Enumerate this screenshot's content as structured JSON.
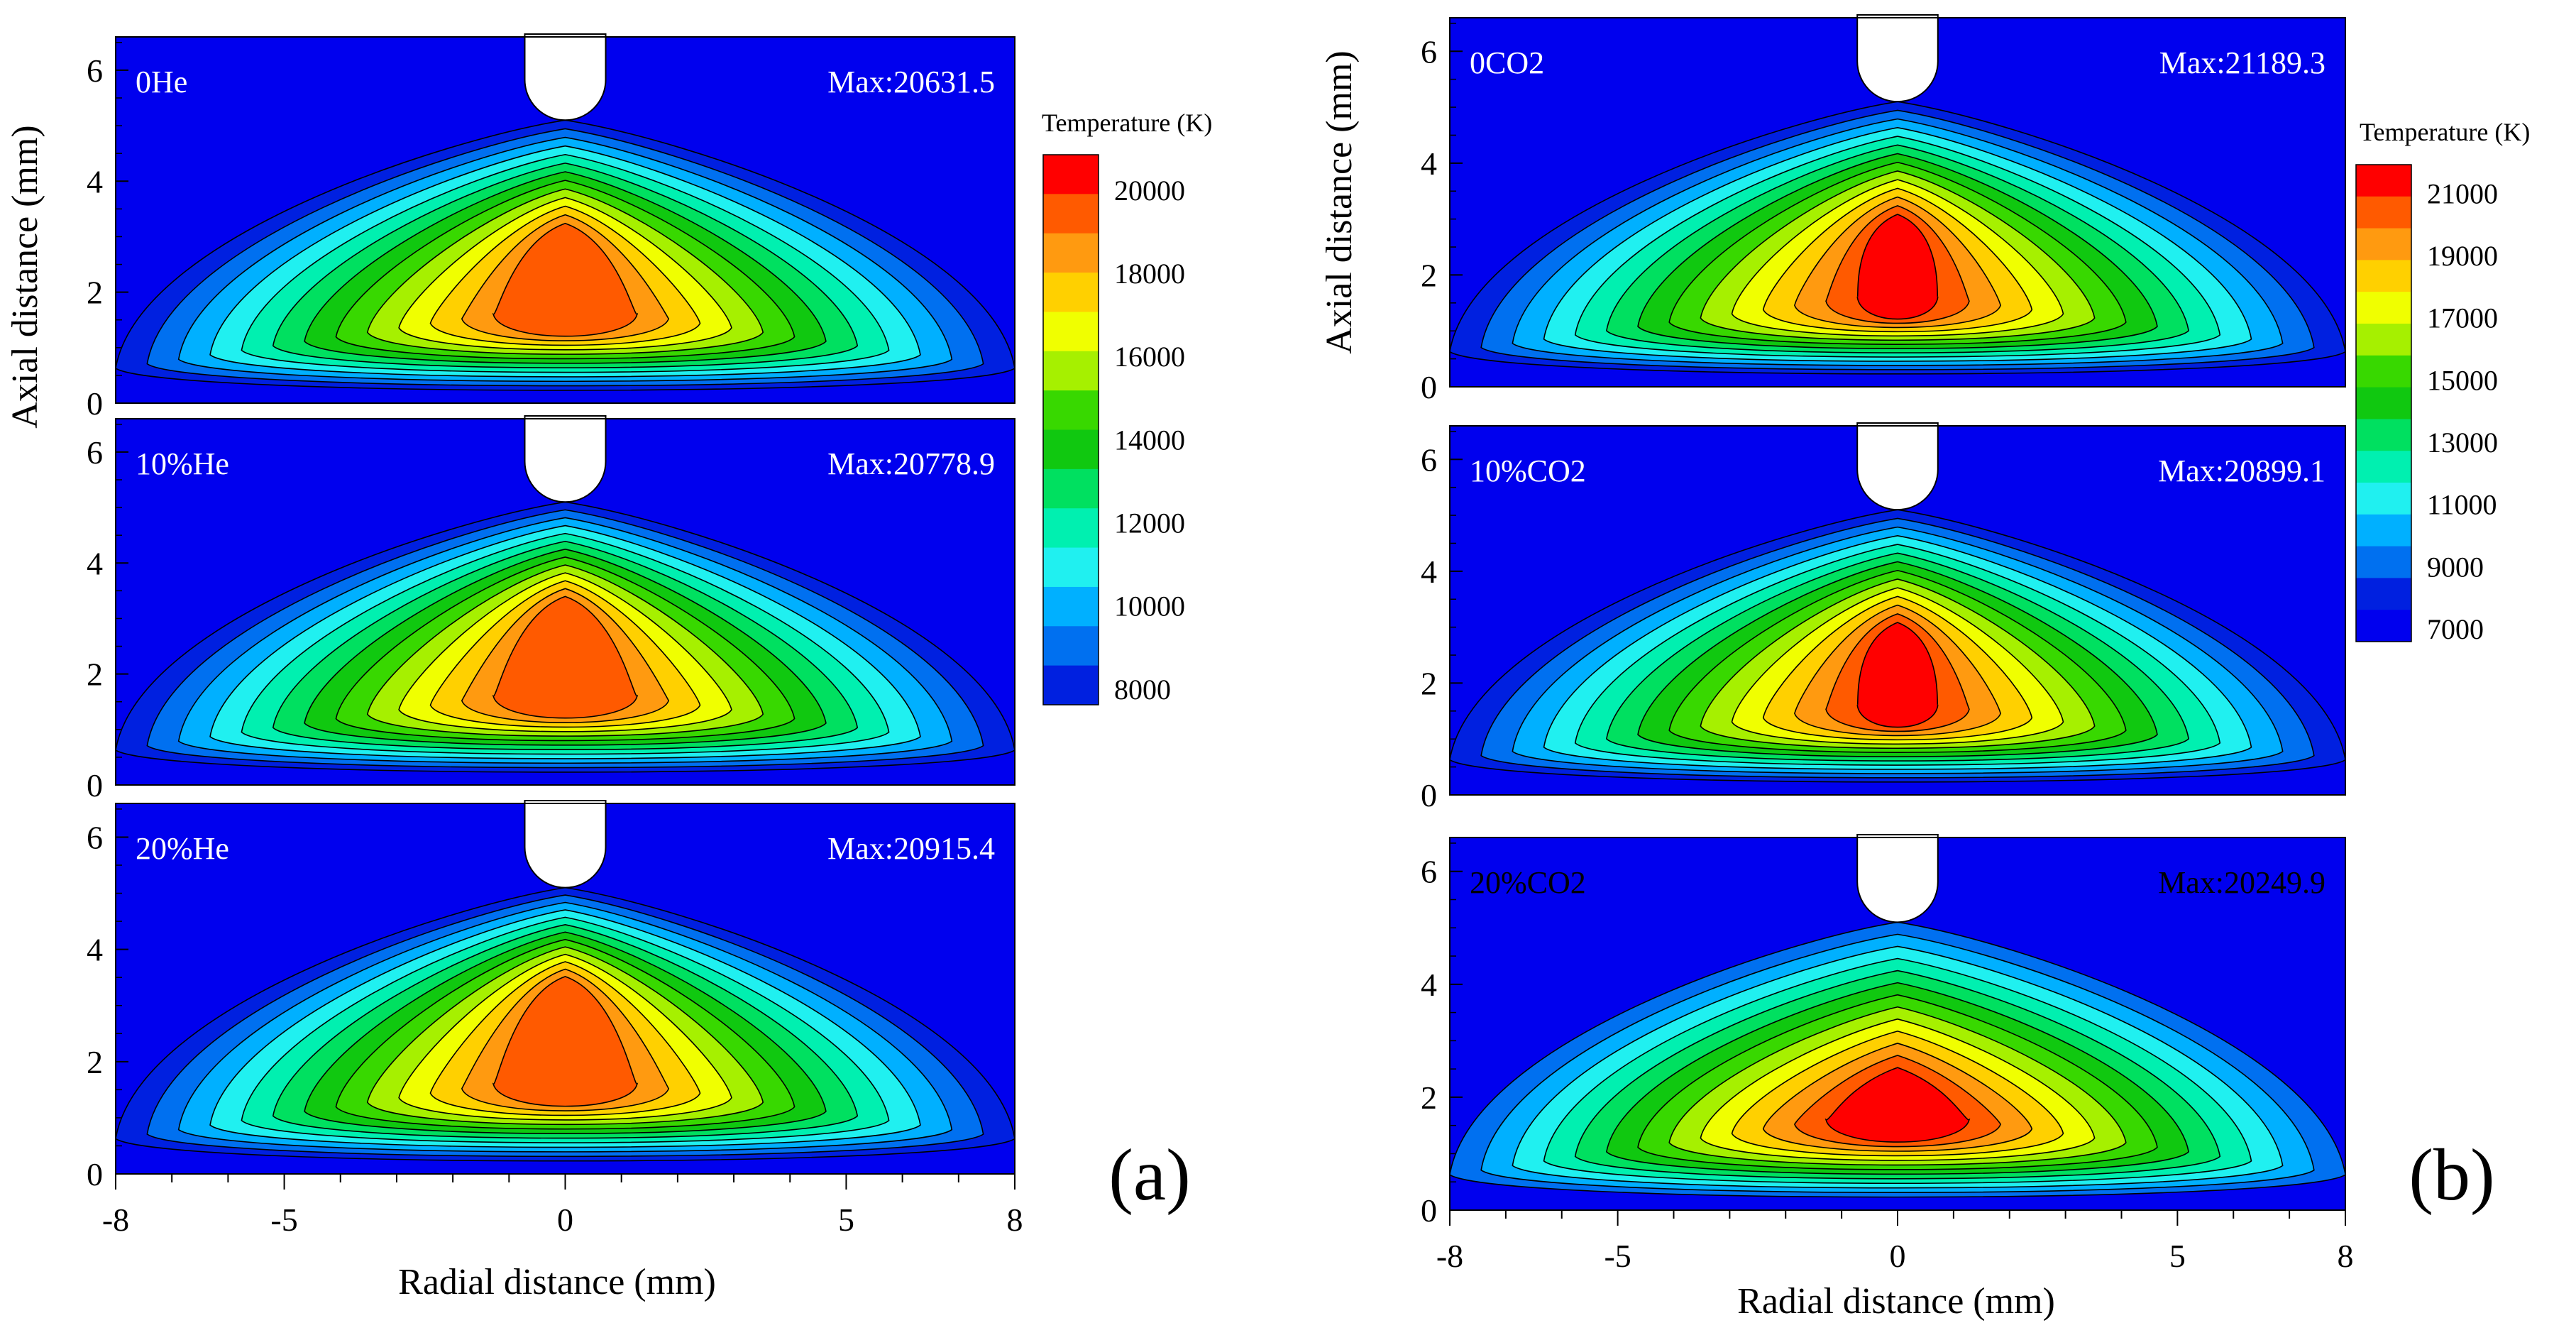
{
  "figure": {
    "panel_a_label": "(a)",
    "panel_b_label": "(b)"
  },
  "chart_data": [
    {
      "type": "heatmap",
      "subtype": "filled contour",
      "panel": "(a)",
      "title": "0He",
      "max_label": "Max:20631.5",
      "max_temperature_K": 20631.5,
      "ylabel": "Axial distance (mm)",
      "xlabel": "Radial distance (mm)",
      "xlim": [
        -8,
        8
      ],
      "ylim": [
        0,
        6.6
      ],
      "x_ticks": [
        -8,
        -5,
        0,
        5,
        8
      ],
      "y_ticks": [
        0,
        2,
        4,
        6
      ],
      "contour_levels_K": [
        8000,
        9000,
        10000,
        11000,
        12000,
        13000,
        14000,
        15000,
        16000,
        17000,
        18000,
        19000,
        20000
      ]
    },
    {
      "type": "heatmap",
      "subtype": "filled contour",
      "panel": "(a)",
      "title": "10%He",
      "max_label": "Max:20778.9",
      "max_temperature_K": 20778.9,
      "xlim": [
        -8,
        8
      ],
      "ylim": [
        0,
        6.6
      ],
      "y_ticks": [
        0,
        2,
        4,
        6
      ]
    },
    {
      "type": "heatmap",
      "subtype": "filled contour",
      "panel": "(a)",
      "title": "20%He",
      "max_label": "Max:20915.4",
      "max_temperature_K": 20915.4,
      "xlim": [
        -8,
        8
      ],
      "ylim": [
        0,
        6.6
      ],
      "y_ticks": [
        0,
        2,
        4,
        6
      ]
    },
    {
      "type": "heatmap",
      "subtype": "filled contour",
      "panel": "(b)",
      "title": "0CO2",
      "max_label": "Max:21189.3",
      "max_temperature_K": 21189.3,
      "ylabel": "Axial distance (mm)",
      "xlabel": "Radial distance (mm)",
      "xlim": [
        -8,
        8
      ],
      "ylim": [
        0,
        6.6
      ],
      "x_ticks": [
        -8,
        -5,
        0,
        5,
        8
      ],
      "y_ticks": [
        0,
        2,
        4,
        6
      ]
    },
    {
      "type": "heatmap",
      "subtype": "filled contour",
      "panel": "(b)",
      "title": "10%CO2",
      "max_label": "Max:20899.1",
      "max_temperature_K": 20899.1,
      "xlim": [
        -8,
        8
      ],
      "ylim": [
        0,
        6.6
      ],
      "y_ticks": [
        0,
        2,
        4,
        6
      ]
    },
    {
      "type": "heatmap",
      "subtype": "filled contour",
      "panel": "(b)",
      "title": "20%CO2",
      "max_label": "Max:20249.9",
      "max_temperature_K": 20249.9,
      "xlim": [
        -8,
        8
      ],
      "ylim": [
        0,
        6.6
      ],
      "y_ticks": [
        0,
        2,
        4,
        6
      ]
    }
  ],
  "legends": [
    {
      "panel": "(a)",
      "title": "Temperature",
      "unit": "(K)",
      "tick_labels": [
        "20000",
        "18000",
        "16000",
        "14000",
        "12000",
        "10000",
        "8000"
      ],
      "colors": [
        "#ff0000",
        "#ff5a00",
        "#ff9a10",
        "#ffd000",
        "#f0ff00",
        "#a6f000",
        "#38d800",
        "#10c810",
        "#00e060",
        "#00f0b0",
        "#20f0f0",
        "#00b0ff",
        "#0070f0",
        "#0020e0"
      ]
    },
    {
      "panel": "(b)",
      "title": "Temperature",
      "unit": "(K)",
      "tick_labels": [
        "21000",
        "19000",
        "17000",
        "15000",
        "13000",
        "11000",
        "9000",
        "7000"
      ],
      "colors": [
        "#ff0000",
        "#ff5a00",
        "#ff9a10",
        "#ffd000",
        "#f0ff00",
        "#a6f000",
        "#38d800",
        "#10c810",
        "#00e060",
        "#00f0b0",
        "#20f0f0",
        "#00b0ff",
        "#0070f0",
        "#0020e0",
        "#0000ee"
      ]
    }
  ]
}
